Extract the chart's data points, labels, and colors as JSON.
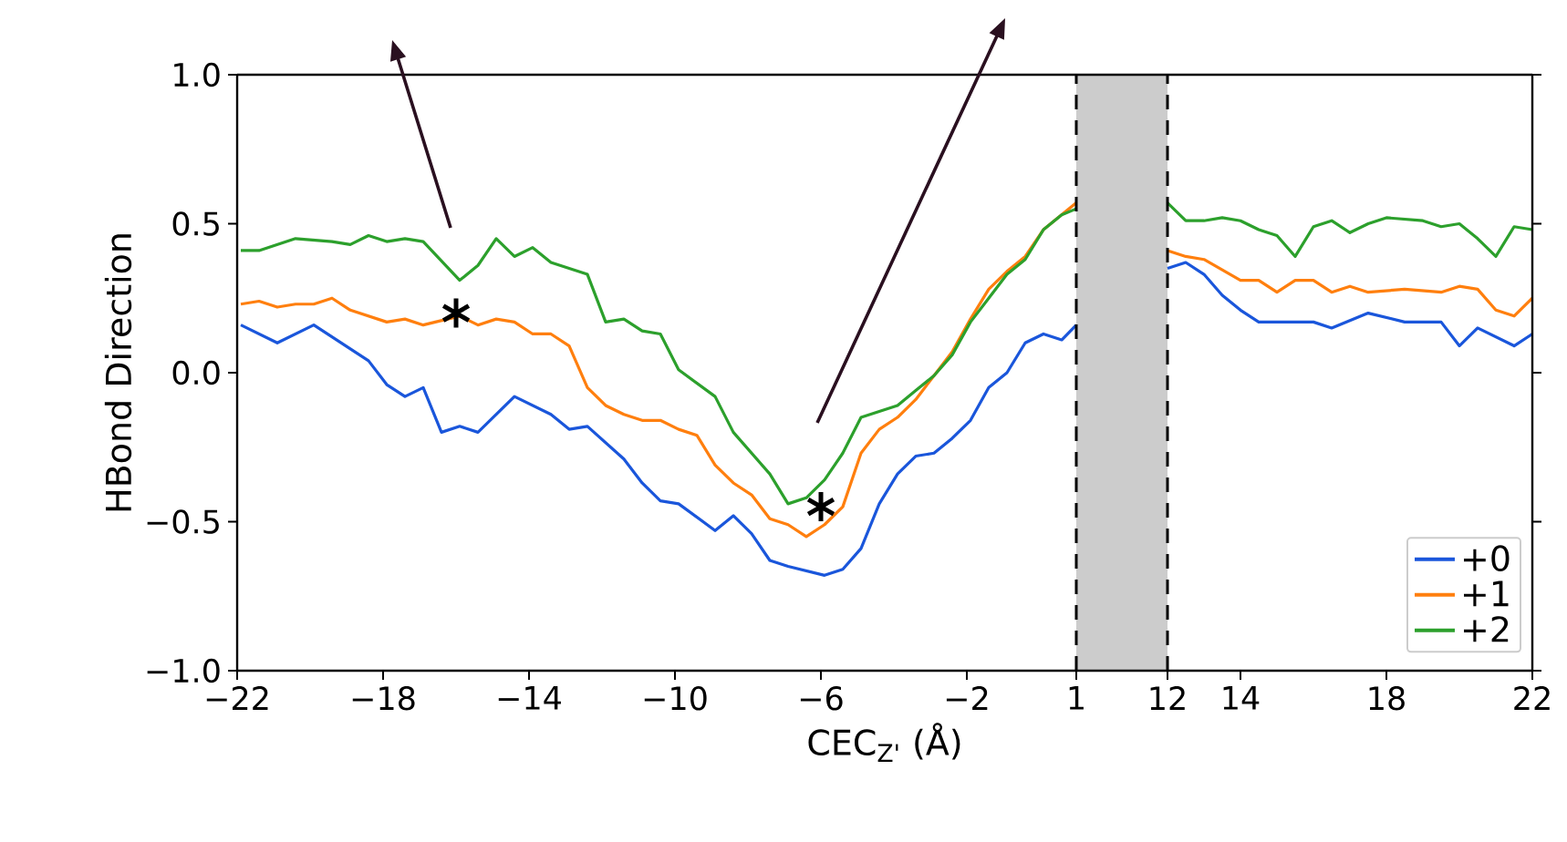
{
  "chart_data": [
    {
      "type": "line",
      "ylabel": "HBond Direction",
      "xlabel": "CEC$_{Z'}$ (Å)",
      "xlim": [
        -22,
        3.5
      ],
      "ylim": [
        -1.0,
        1.0
      ],
      "xticks": [
        {
          "value": -22,
          "label": "−22"
        },
        {
          "value": -18,
          "label": "−18"
        },
        {
          "value": -14,
          "label": "−14"
        },
        {
          "value": -10,
          "label": "−10"
        },
        {
          "value": -6,
          "label": "−6"
        },
        {
          "value": -2,
          "label": "−2"
        },
        1
      ],
      "yticks": [
        {
          "value": -1.0,
          "label": "−1.0"
        },
        {
          "value": -0.5,
          "label": "−0.5"
        },
        {
          "value": 0.0,
          "label": "0.0"
        },
        {
          "value": 0.5,
          "label": "0.5"
        },
        {
          "value": 1.0,
          "label": "1.0"
        }
      ],
      "grid": false,
      "legend": false,
      "bands": [
        {
          "axis": "x",
          "from": 1,
          "to": 3.5,
          "color": "#cccccc"
        }
      ],
      "ref_lines": [
        {
          "axis": "x",
          "value": 1,
          "color": "#000000",
          "line_style": "dashed"
        }
      ],
      "series": [
        {
          "color": "#1a56db",
          "x": [
            -21.9,
            -20.9,
            -19.9,
            -18.4,
            -17.9,
            -17.4,
            -16.9,
            -16.4,
            -15.9,
            -15.4,
            -14.4,
            -13.4,
            -12.9,
            -12.4,
            -11.4,
            -10.9,
            -10.4,
            -9.9,
            -8.9,
            -8.4,
            -7.9,
            -7.4,
            -6.9,
            -5.9,
            -5.4,
            -4.9,
            -4.4,
            -3.9,
            -3.4,
            -2.9,
            -2.4,
            -1.9,
            -1.4,
            -0.9,
            -0.4,
            0.1,
            0.6,
            1.0
          ],
          "values": [
            0.16,
            0.1,
            0.16,
            0.04,
            -0.04,
            -0.08,
            -0.05,
            -0.2,
            -0.18,
            -0.2,
            -0.08,
            -0.14,
            -0.19,
            -0.18,
            -0.29,
            -0.37,
            -0.43,
            -0.44,
            -0.53,
            -0.48,
            -0.54,
            -0.63,
            -0.65,
            -0.68,
            -0.66,
            -0.59,
            -0.44,
            -0.34,
            -0.28,
            -0.27,
            -0.22,
            -0.16,
            -0.05,
            0.0,
            0.1,
            0.13,
            0.11,
            0.16
          ]
        },
        {
          "color": "#ff7f0e",
          "x": [
            -21.9,
            -21.4,
            -20.9,
            -20.4,
            -19.9,
            -19.4,
            -18.9,
            -17.9,
            -17.4,
            -16.9,
            -15.9,
            -15.4,
            -14.9,
            -14.4,
            -13.9,
            -13.4,
            -12.9,
            -12.4,
            -11.9,
            -11.4,
            -10.9,
            -10.4,
            -9.9,
            -9.4,
            -8.9,
            -8.4,
            -7.9,
            -7.4,
            -6.9,
            -6.4,
            -5.9,
            -5.4,
            -4.9,
            -4.4,
            -3.9,
            -3.4,
            -2.9,
            -2.4,
            -1.9,
            -1.4,
            -0.9,
            -0.4,
            0.1,
            0.6,
            1.0
          ],
          "values": [
            0.23,
            0.24,
            0.22,
            0.23,
            0.23,
            0.25,
            0.21,
            0.17,
            0.18,
            0.16,
            0.19,
            0.16,
            0.18,
            0.17,
            0.13,
            0.13,
            0.09,
            -0.05,
            -0.11,
            -0.14,
            -0.16,
            -0.16,
            -0.19,
            -0.21,
            -0.31,
            -0.37,
            -0.41,
            -0.49,
            -0.51,
            -0.55,
            -0.51,
            -0.45,
            -0.27,
            -0.19,
            -0.15,
            -0.09,
            -0.01,
            0.07,
            0.18,
            0.28,
            0.34,
            0.39,
            0.48,
            0.53,
            0.57
          ]
        },
        {
          "color": "#2ca02c",
          "x": [
            -21.9,
            -21.4,
            -20.4,
            -19.4,
            -18.9,
            -18.4,
            -17.9,
            -17.4,
            -16.9,
            -15.9,
            -15.4,
            -14.9,
            -14.4,
            -13.9,
            -13.4,
            -12.9,
            -12.4,
            -11.9,
            -11.4,
            -10.9,
            -10.4,
            -9.9,
            -8.9,
            -8.4,
            -7.4,
            -6.9,
            -6.4,
            -5.9,
            -5.4,
            -4.9,
            -4.4,
            -3.9,
            -3.4,
            -2.9,
            -2.4,
            -1.9,
            -1.4,
            -0.9,
            -0.4,
            0.1,
            0.6,
            1.0
          ],
          "values": [
            0.41,
            0.41,
            0.45,
            0.44,
            0.43,
            0.46,
            0.44,
            0.45,
            0.44,
            0.31,
            0.36,
            0.45,
            0.39,
            0.42,
            0.37,
            0.35,
            0.33,
            0.17,
            0.18,
            0.14,
            0.13,
            0.01,
            -0.08,
            -0.2,
            -0.34,
            -0.44,
            -0.42,
            -0.36,
            -0.27,
            -0.15,
            -0.13,
            -0.11,
            -0.06,
            -0.01,
            0.06,
            0.17,
            0.25,
            0.33,
            0.38,
            0.48,
            0.53,
            0.55
          ]
        },
        {
          "type": "scatter",
          "marker": "cross",
          "color": "#000000",
          "x": [
            -16,
            -6
          ],
          "values": [
            0.2,
            -0.45
          ]
        }
      ]
    },
    {
      "type": "line",
      "xlim": [
        12,
        22
      ],
      "ylim": [
        -1.0,
        1.0
      ],
      "xticks": [
        12,
        14,
        18,
        22
      ],
      "yticks": [
        {
          "value": -1.0,
          "label": null
        },
        {
          "value": -0.5,
          "label": null
        },
        {
          "value": 0.0,
          "label": null
        },
        {
          "value": 0.5,
          "label": null
        },
        {
          "value": 1.0,
          "label": null
        }
      ],
      "tick_labels": "x",
      "grid": false,
      "legend": "bottom right",
      "ref_lines": [
        {
          "axis": "x",
          "value": 12,
          "color": "#000000",
          "line_style": "dashed"
        }
      ],
      "series": [
        {
          "name": "+0",
          "color": "#1a56db",
          "x": [
            12,
            12.5,
            13,
            13.5,
            14,
            14.5,
            15.5,
            16,
            16.5,
            17.5,
            18.5,
            19.5,
            20,
            20.5,
            21.5,
            22
          ],
          "values": [
            0.35,
            0.37,
            0.33,
            0.26,
            0.21,
            0.17,
            0.17,
            0.17,
            0.15,
            0.2,
            0.17,
            0.17,
            0.09,
            0.15,
            0.09,
            0.13
          ]
        },
        {
          "name": "+1",
          "color": "#ff7f0e",
          "x": [
            12,
            12.5,
            13,
            14,
            14.5,
            15,
            15.5,
            16,
            16.5,
            17,
            17.5,
            18.5,
            19.5,
            20,
            20.5,
            21,
            21.5,
            22
          ],
          "values": [
            0.41,
            0.39,
            0.38,
            0.31,
            0.31,
            0.27,
            0.31,
            0.31,
            0.27,
            0.29,
            0.27,
            0.28,
            0.27,
            0.29,
            0.28,
            0.21,
            0.19,
            0.25
          ]
        },
        {
          "name": "+2",
          "color": "#2ca02c",
          "x": [
            12,
            12.5,
            13,
            13.5,
            14,
            14.5,
            15,
            15.5,
            16,
            16.5,
            17,
            17.5,
            18,
            19,
            19.5,
            20,
            20.5,
            21,
            21.5,
            22
          ],
          "values": [
            0.57,
            0.51,
            0.51,
            0.52,
            0.51,
            0.48,
            0.46,
            0.39,
            0.49,
            0.51,
            0.47,
            0.5,
            0.52,
            0.51,
            0.49,
            0.5,
            0.45,
            0.39,
            0.49,
            0.48
          ]
        }
      ]
    }
  ]
}
